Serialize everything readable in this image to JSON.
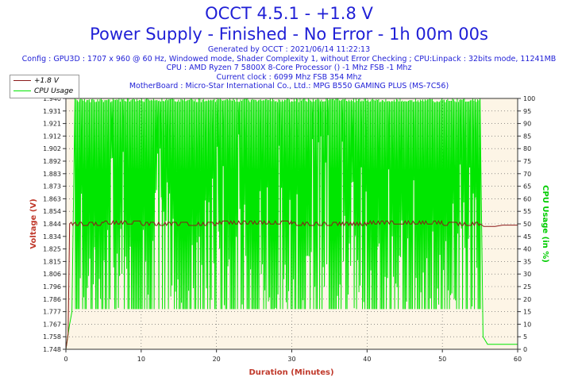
{
  "header": {
    "title": "OCCT 4.5.1 - +1.8 V",
    "subtitle": "Power Supply - Finished - No Error - 1h 00m 00s",
    "generated": "Generated by OCCT : 2021/06/14 11:22:13",
    "config": "Config : GPU3D : 1707 x 960 @ 60 Hz, Windowed mode, Shader Complexity 1, without Error Checking ; CPU:Linpack : 32bits mode, 11241MB",
    "cpu": "CPU : AMD Ryzen 7 5800X 8-Core Processor () -1 Mhz FSB -1 Mhz",
    "clock": "Current clock : 6099 Mhz FSB 354 Mhz",
    "motherboard": "MotherBoard : Micro-Star International Co., Ltd.: MPG B550 GAMING PLUS (MS-7C56)"
  },
  "colors": {
    "voltage": "#8b1a1a",
    "cpu": "#00e600",
    "plot_bg": "#fdf5e6",
    "axis_title": "#c0392b",
    "cpu_axis": "#00cc00",
    "title": "#1f1fd6"
  },
  "chart_data": {
    "type": "line",
    "xlabel": "Duration (Minutes)",
    "ylabel_left": "Voltage (V)",
    "ylabel_right": "CPU Usage (in %)",
    "xlim": [
      0,
      60
    ],
    "ylim_left": [
      1.748,
      1.94
    ],
    "ylim_right": [
      0,
      100
    ],
    "x_ticks": [
      "0",
      "10",
      "20",
      "30",
      "40",
      "50",
      "60"
    ],
    "y_left_ticks": [
      "1.748",
      "1.758",
      "1.767",
      "1.777",
      "1.786",
      "1.796",
      "1.806",
      "1.815",
      "1.825",
      "1.834",
      "1.844",
      "1.854",
      "1.863",
      "1.873",
      "1.883",
      "1.892",
      "1.902",
      "1.912",
      "1.921",
      "1.931",
      "1.940"
    ],
    "y_right_ticks": [
      "0",
      "5",
      "10",
      "15",
      "20",
      "25",
      "30",
      "35",
      "40",
      "45",
      "50",
      "55",
      "60",
      "65",
      "70",
      "75",
      "80",
      "85",
      "90",
      "95",
      "100"
    ],
    "grid": true,
    "legend_position": "top-left",
    "series": [
      {
        "name": "+1.8 V",
        "axis": "left",
        "x": [
          0,
          0.3,
          0.5,
          1,
          5,
          10,
          20,
          30,
          40,
          50,
          55,
          55.5,
          57,
          58,
          60
        ],
        "values": [
          1.748,
          1.76,
          1.844,
          1.844,
          1.845,
          1.844,
          1.845,
          1.844,
          1.845,
          1.844,
          1.844,
          1.842,
          1.842,
          1.843,
          1.843
        ]
      },
      {
        "name": "CPU Usage",
        "axis": "right",
        "x": [
          0,
          0.5,
          0.8,
          1.2,
          10,
          20,
          30,
          40,
          50,
          55,
          55.4,
          56,
          60
        ],
        "values": [
          0,
          10,
          15,
          100,
          100,
          100,
          100,
          100,
          100,
          100,
          5,
          2,
          2
        ],
        "oscillation_range": [
          16,
          100
        ],
        "oscillation_interval": [
          1.2,
          55
        ]
      }
    ]
  }
}
